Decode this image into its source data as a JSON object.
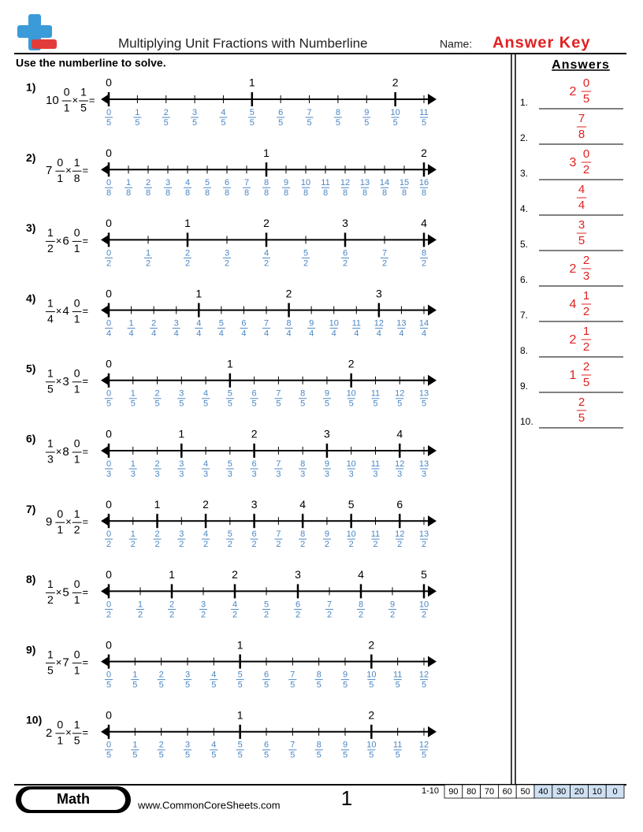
{
  "header": {
    "title": "Multiplying Unit Fractions with Numberline",
    "name_label": "Name:",
    "answer_key": "Answer Key"
  },
  "instructions": "Use the numberline to solve.",
  "times_sign": "×",
  "equals_sign": "=",
  "problems": [
    {
      "number": "1)",
      "left": {
        "whole": "10",
        "num": "0",
        "den": "1"
      },
      "right": {
        "num": "1",
        "den": "5"
      },
      "numberline": {
        "whole_labels": [
          "0",
          "1",
          "2"
        ],
        "numerators": [
          "0",
          "1",
          "2",
          "3",
          "4",
          "5",
          "6",
          "7",
          "8",
          "9",
          "10",
          "11"
        ],
        "denominator": "5"
      }
    },
    {
      "number": "2)",
      "left": {
        "whole": "7",
        "num": "0",
        "den": "1"
      },
      "right": {
        "num": "1",
        "den": "8"
      },
      "numberline": {
        "whole_labels": [
          "0",
          "1",
          "2"
        ],
        "numerators": [
          "0",
          "1",
          "2",
          "3",
          "4",
          "5",
          "6",
          "7",
          "8",
          "9",
          "10",
          "11",
          "12",
          "13",
          "14",
          "15",
          "16"
        ],
        "denominator": "8"
      }
    },
    {
      "number": "3)",
      "left": {
        "num": "1",
        "den": "2"
      },
      "right": {
        "whole": "6",
        "num": "0",
        "den": "1"
      },
      "numberline": {
        "whole_labels": [
          "0",
          "1",
          "2",
          "3",
          "4"
        ],
        "numerators": [
          "0",
          "1",
          "2",
          "3",
          "4",
          "5",
          "6",
          "7",
          "8"
        ],
        "denominator": "2"
      }
    },
    {
      "number": "4)",
      "left": {
        "num": "1",
        "den": "4"
      },
      "right": {
        "whole": "4",
        "num": "0",
        "den": "1"
      },
      "numberline": {
        "whole_labels": [
          "0",
          "1",
          "2",
          "3"
        ],
        "numerators": [
          "0",
          "1",
          "2",
          "3",
          "4",
          "5",
          "6",
          "7",
          "8",
          "9",
          "10",
          "11",
          "12",
          "13",
          "14"
        ],
        "denominator": "4"
      }
    },
    {
      "number": "5)",
      "left": {
        "num": "1",
        "den": "5"
      },
      "right": {
        "whole": "3",
        "num": "0",
        "den": "1"
      },
      "numberline": {
        "whole_labels": [
          "0",
          "1",
          "2"
        ],
        "numerators": [
          "0",
          "1",
          "2",
          "3",
          "4",
          "5",
          "6",
          "7",
          "8",
          "9",
          "10",
          "11",
          "12",
          "13"
        ],
        "denominator": "5"
      }
    },
    {
      "number": "6)",
      "left": {
        "num": "1",
        "den": "3"
      },
      "right": {
        "whole": "8",
        "num": "0",
        "den": "1"
      },
      "numberline": {
        "whole_labels": [
          "0",
          "1",
          "2",
          "3",
          "4"
        ],
        "numerators": [
          "0",
          "1",
          "2",
          "3",
          "4",
          "5",
          "6",
          "7",
          "8",
          "9",
          "10",
          "11",
          "12",
          "13"
        ],
        "denominator": "3"
      }
    },
    {
      "number": "7)",
      "left": {
        "whole": "9",
        "num": "0",
        "den": "1"
      },
      "right": {
        "num": "1",
        "den": "2"
      },
      "numberline": {
        "whole_labels": [
          "0",
          "1",
          "2",
          "3",
          "4",
          "5",
          "6"
        ],
        "numerators": [
          "0",
          "1",
          "2",
          "3",
          "4",
          "5",
          "6",
          "7",
          "8",
          "9",
          "10",
          "11",
          "12",
          "13"
        ],
        "denominator": "2"
      }
    },
    {
      "number": "8)",
      "left": {
        "num": "1",
        "den": "2"
      },
      "right": {
        "whole": "5",
        "num": "0",
        "den": "1"
      },
      "numberline": {
        "whole_labels": [
          "0",
          "1",
          "2",
          "3",
          "4",
          "5"
        ],
        "numerators": [
          "0",
          "1",
          "2",
          "3",
          "4",
          "5",
          "6",
          "7",
          "8",
          "9",
          "10"
        ],
        "denominator": "2"
      }
    },
    {
      "number": "9)",
      "left": {
        "num": "1",
        "den": "5"
      },
      "right": {
        "whole": "7",
        "num": "0",
        "den": "1"
      },
      "numberline": {
        "whole_labels": [
          "0",
          "1",
          "2"
        ],
        "numerators": [
          "0",
          "1",
          "2",
          "3",
          "4",
          "5",
          "6",
          "7",
          "8",
          "9",
          "10",
          "11",
          "12"
        ],
        "denominator": "5"
      }
    },
    {
      "number": "10)",
      "left": {
        "whole": "2",
        "num": "0",
        "den": "1"
      },
      "right": {
        "num": "1",
        "den": "5"
      },
      "numberline": {
        "whole_labels": [
          "0",
          "1",
          "2"
        ],
        "numerators": [
          "0",
          "1",
          "2",
          "3",
          "4",
          "5",
          "6",
          "7",
          "8",
          "9",
          "10",
          "11",
          "12"
        ],
        "denominator": "5"
      }
    }
  ],
  "answers": {
    "heading": "Answers",
    "items": [
      {
        "number": "1.",
        "whole": "2",
        "num": "0",
        "den": "5"
      },
      {
        "number": "2.",
        "num": "7",
        "den": "8"
      },
      {
        "number": "3.",
        "whole": "3",
        "num": "0",
        "den": "2"
      },
      {
        "number": "4.",
        "num": "4",
        "den": "4"
      },
      {
        "number": "5.",
        "num": "3",
        "den": "5"
      },
      {
        "number": "6.",
        "whole": "2",
        "num": "2",
        "den": "3"
      },
      {
        "number": "7.",
        "whole": "4",
        "num": "1",
        "den": "2"
      },
      {
        "number": "8.",
        "whole": "2",
        "num": "1",
        "den": "2"
      },
      {
        "number": "9.",
        "whole": "1",
        "num": "2",
        "den": "5"
      },
      {
        "number": "10.",
        "num": "2",
        "den": "5"
      }
    ]
  },
  "footer": {
    "subject": "Math",
    "website": "www.CommonCoreSheets.com",
    "page": "1",
    "score_label": "1-10",
    "scores": [
      90,
      80,
      70,
      60,
      50,
      40,
      30,
      20,
      10,
      0
    ]
  }
}
